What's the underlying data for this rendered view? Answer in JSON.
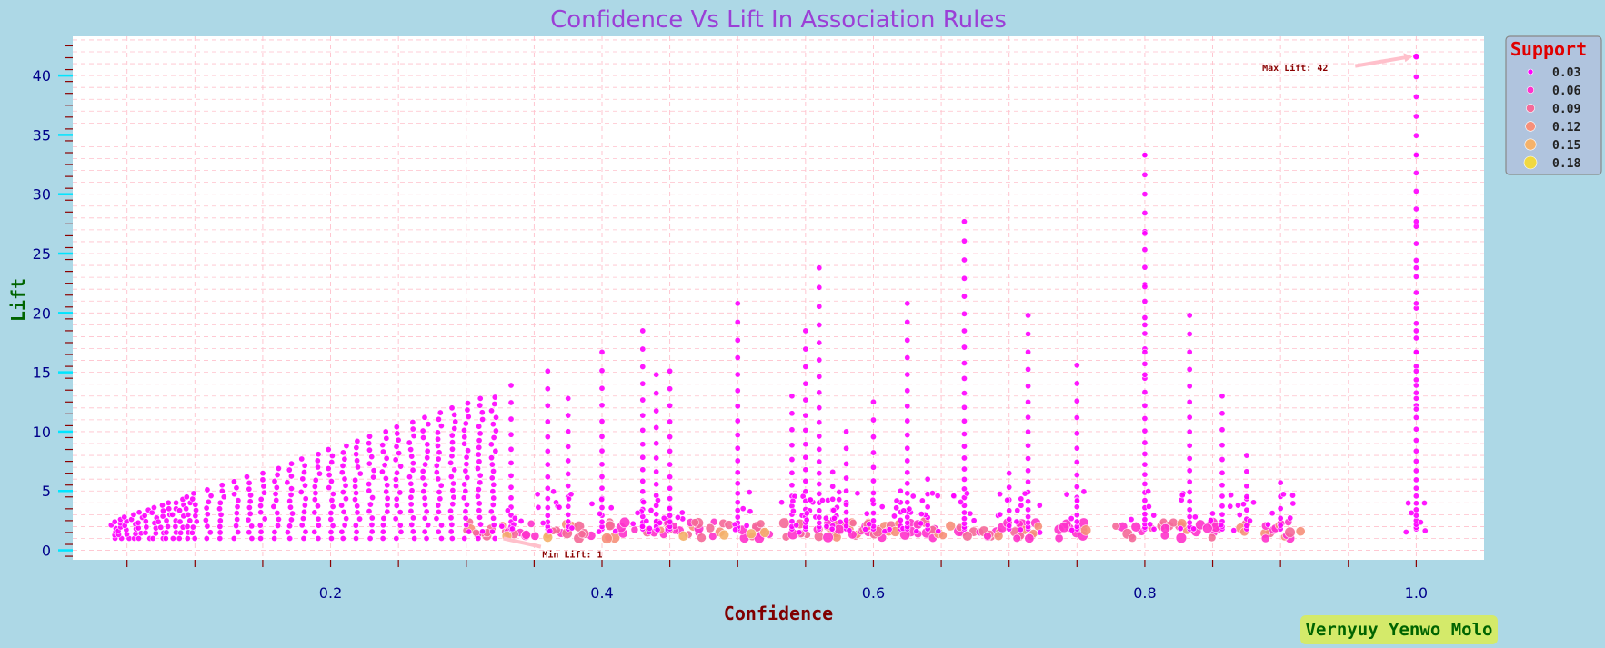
{
  "chart_data": {
    "type": "scatter",
    "title": "Confidence Vs Lift In Association Rules",
    "xlabel": "Confidence",
    "ylabel": "Lift",
    "xlim": [
      0.01,
      1.05
    ],
    "ylim": [
      -0.8,
      43.3
    ],
    "xticks": [
      0.2,
      0.4,
      0.6,
      0.8,
      1.0
    ],
    "xtick_labels": [
      "0.2",
      "0.4",
      "0.6",
      "0.8",
      "1.0"
    ],
    "yticks": [
      0,
      5,
      10,
      15,
      20,
      25,
      30,
      35,
      40
    ],
    "ytick_labels": [
      "0",
      "5",
      "10",
      "15",
      "20",
      "25",
      "30",
      "35",
      "40"
    ],
    "grid": true,
    "legend": {
      "title": "Support",
      "placement": "outside-top-right",
      "entries": [
        {
          "label": "0.03",
          "color": "#ff00ff"
        },
        {
          "label": "0.06",
          "color": "#ff33cc"
        },
        {
          "label": "0.09",
          "color": "#f56a99"
        },
        {
          "label": "0.12",
          "color": "#f7907a"
        },
        {
          "label": "0.15",
          "color": "#f4b26a"
        },
        {
          "label": "0.18",
          "color": "#f0d840"
        }
      ]
    },
    "annotations": [
      {
        "text": "Max Lift: 42",
        "x": 1.0,
        "y": 41.6
      },
      {
        "text": "Min Lift: 1",
        "x": 0.33,
        "y": 1.0
      }
    ],
    "series": [
      {
        "confidence_columns": [
          0.04,
          0.045,
          0.05,
          0.055,
          0.06,
          0.065,
          0.07,
          0.075,
          0.08,
          0.085,
          0.09,
          0.095,
          0.1,
          0.11,
          0.12,
          0.13,
          0.14,
          0.15,
          0.16,
          0.17,
          0.18,
          0.19,
          0.2,
          0.21,
          0.22,
          0.23,
          0.24,
          0.25,
          0.26,
          0.27,
          0.28,
          0.29,
          0.3,
          0.31,
          0.32
        ],
        "lift_max": [
          2.4,
          2.6,
          2.8,
          3.0,
          3.2,
          3.4,
          3.6,
          3.8,
          4.0,
          4.0,
          4.3,
          4.5,
          4.8,
          5.1,
          5.5,
          5.8,
          6.2,
          6.5,
          6.9,
          7.3,
          7.7,
          8.1,
          8.5,
          8.8,
          9.2,
          9.6,
          10.0,
          10.4,
          10.8,
          11.2,
          11.6,
          12.0,
          12.4,
          12.8,
          12.9
        ],
        "lift_min": 1.0
      },
      {
        "confidence_columns": [
          0.333,
          0.36,
          0.375,
          0.4,
          0.43,
          0.44,
          0.45,
          0.5,
          0.54,
          0.55,
          0.56,
          0.57,
          0.58,
          0.6,
          0.62,
          0.625,
          0.64,
          0.667,
          0.7,
          0.714,
          0.75,
          0.8,
          0.833,
          0.857,
          0.875,
          0.9,
          1.0
        ],
        "lift_max": [
          13.9,
          15.1,
          12.8,
          16.7,
          18.5,
          14.8,
          15.1,
          20.8,
          13.0,
          18.5,
          23.8,
          6.6,
          10.0,
          12.5,
          5.0,
          20.8,
          6.0,
          27.7,
          6.5,
          19.8,
          15.6,
          33.3,
          19.8,
          13.0,
          8.0,
          5.7,
          41.6
        ],
        "lift_min": 1.8
      }
    ]
  }
}
